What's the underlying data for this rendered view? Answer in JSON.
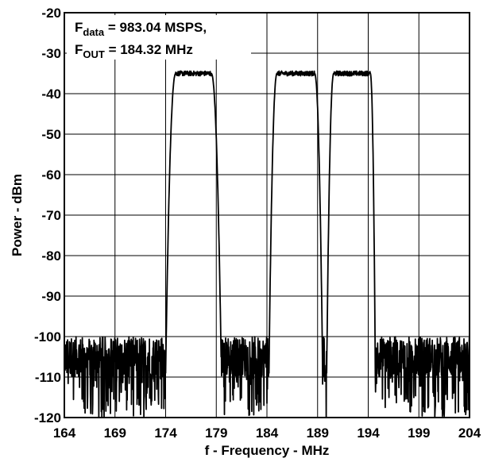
{
  "chart_data": {
    "type": "line",
    "title": "",
    "xlabel": "f - Frequency - MHz",
    "ylabel": "Power - dBm",
    "xlim": [
      164,
      204
    ],
    "ylim": [
      -120,
      -20
    ],
    "x_ticks": [
      164,
      169,
      174,
      179,
      184,
      189,
      194,
      199,
      204
    ],
    "x_tick_labels": [
      "164",
      "169",
      "174",
      "179",
      "184",
      "189",
      "194",
      "199",
      "204"
    ],
    "y_ticks": [
      -20,
      -30,
      -40,
      -50,
      -60,
      -70,
      -80,
      -90,
      -100,
      -110,
      -120
    ],
    "y_tick_labels": [
      "-20",
      "-30",
      "-40",
      "-50",
      "-60",
      "-70",
      "-80",
      "-90",
      "-100",
      "-110",
      "-120"
    ],
    "grid": true,
    "line_color": "#000000",
    "annotations": [
      {
        "main": "F",
        "sub": "data",
        "rest": " = 983.04 MSPS,"
      },
      {
        "main": "F",
        "sub": "OUT",
        "rest": " = 184.32 MHz"
      }
    ],
    "series": [
      {
        "noise_floor_dbm": -105,
        "noise_spread_db": 5,
        "noise_dips_to_dbm": -120,
        "carriers": [
          {
            "edge_start_mhz": 174.0,
            "top_start_mhz": 175.0,
            "top_end_mhz": 178.5,
            "edge_end_mhz": 179.5,
            "level_dbm": -35
          },
          {
            "edge_start_mhz": 184.2,
            "top_start_mhz": 185.0,
            "top_end_mhz": 188.7,
            "edge_end_mhz": 189.5,
            "level_dbm": -35
          },
          {
            "edge_start_mhz": 189.9,
            "top_start_mhz": 190.6,
            "top_end_mhz": 194.2,
            "edge_end_mhz": 194.7,
            "level_dbm": -35
          }
        ],
        "notch": {
          "x_mhz": 189.75,
          "level_dbm": -111
        }
      }
    ]
  }
}
